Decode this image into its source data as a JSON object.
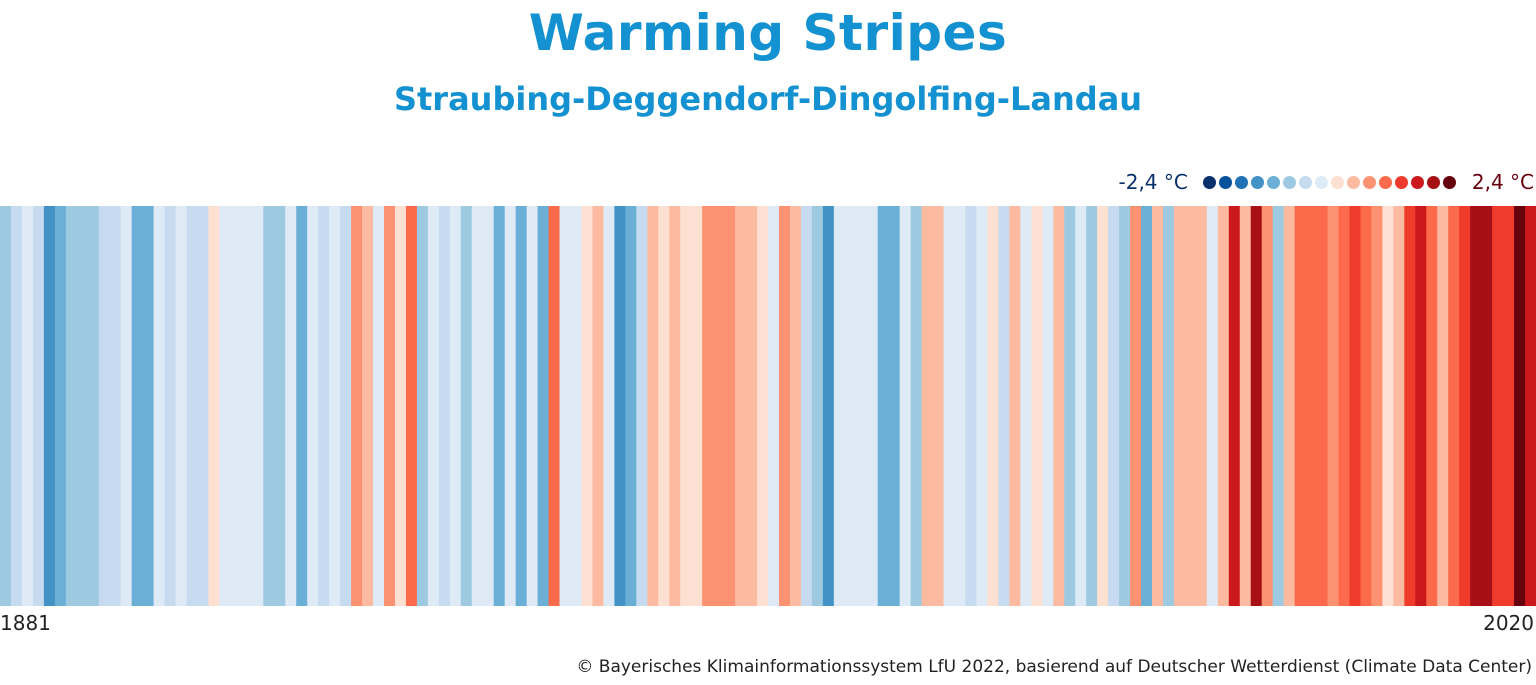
{
  "title": "Warming Stripes",
  "subtitle": "Straubing-Deggendorf-Dingolfing-Landau",
  "legend": {
    "min_label": "-2,4 °C",
    "max_label": "2,4 °C",
    "colors": [
      "#08306b",
      "#08519c",
      "#2171b5",
      "#4292c6",
      "#6baed6",
      "#9ecae1",
      "#c6dbef",
      "#deebf7",
      "#fee0d2",
      "#fcbba1",
      "#fc9272",
      "#fb6a4a",
      "#ef3b2c",
      "#cb181d",
      "#a50f15",
      "#67000d"
    ]
  },
  "credit": "© Bayerisches Klimainformationssystem LfU 2022, basierend auf Deutscher Wetterdienst (Climate Data Center)",
  "chart_data": {
    "type": "heatmap",
    "title": "Warming Stripes",
    "subtitle": "Straubing-Deggendorf-Dingolfing-Landau",
    "x_start_label": "1881",
    "x_end_label": "2020",
    "x_range": [
      1881,
      2020
    ],
    "scale_min": -2.4,
    "scale_max": 2.4,
    "unit": "°C",
    "values": [
      -0.9,
      -0.6,
      -0.2,
      -0.6,
      -1.5,
      -1.0,
      -0.9,
      -0.9,
      -0.9,
      -0.6,
      -0.6,
      -0.3,
      -1.2,
      -1.2,
      -0.3,
      -0.6,
      -0.3,
      -0.6,
      -0.6,
      0.15,
      -0.3,
      -0.3,
      -0.3,
      -0.3,
      -0.9,
      -0.9,
      -0.2,
      -1.2,
      -0.3,
      -0.6,
      -0.2,
      -0.6,
      0.6,
      0.4,
      -0.2,
      0.6,
      0.15,
      0.9,
      -0.9,
      -0.2,
      -0.6,
      -0.2,
      -0.9,
      -0.2,
      -0.2,
      -1.2,
      -0.2,
      -1.2,
      -0.2,
      -1.2,
      0.9,
      -0.2,
      -0.2,
      0.15,
      0.4,
      -0.2,
      -1.5,
      -1.2,
      -0.6,
      0.4,
      0.15,
      0.4,
      0.15,
      0.15,
      0.6,
      0.6,
      0.6,
      0.4,
      0.4,
      0.15,
      -0.2,
      0.6,
      0.4,
      -0.6,
      -0.9,
      -1.5,
      -0.2,
      -0.2,
      -0.2,
      -0.2,
      -1.2,
      -1.2,
      -0.3,
      -0.9,
      0.4,
      0.4,
      -0.3,
      -0.3,
      -0.6,
      -0.3,
      0.15,
      -0.6,
      0.4,
      -0.3,
      0.15,
      -0.3,
      0.4,
      -0.9,
      -0.3,
      -0.9,
      0.15,
      -0.6,
      -0.9,
      0.6,
      -1.2,
      0.4,
      -0.9,
      0.4,
      0.4,
      0.4,
      -0.3,
      0.4,
      1.5,
      0.4,
      2.0,
      0.6,
      -0.9,
      0.4,
      0.9,
      0.9,
      0.9,
      0.6,
      0.9,
      1.2,
      0.9,
      0.6,
      0.15,
      0.4,
      1.2,
      1.5,
      0.9,
      0.4,
      0.9,
      1.2,
      2.0,
      2.0,
      1.2,
      1.2,
      2.4,
      1.5
    ]
  }
}
